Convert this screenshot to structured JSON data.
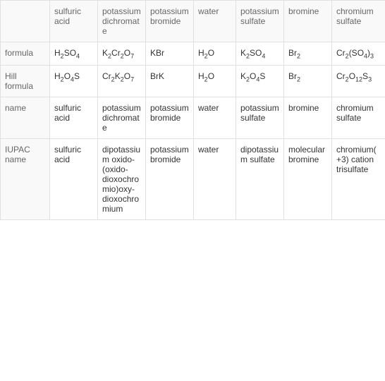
{
  "table": {
    "border_color": "#e0e0e0",
    "header_bg": "#f9f9f9",
    "header_color": "#666666",
    "cell_color": "#333333",
    "font_size": 12,
    "sub_font_size": 9,
    "columns": [
      {
        "key": "rowlabel",
        "header": ""
      },
      {
        "key": "sulfuric_acid",
        "header": "sulfuric acid"
      },
      {
        "key": "potassium_dichromate",
        "header": "potassium dichromate"
      },
      {
        "key": "potassium_bromide",
        "header": "potassium bromide"
      },
      {
        "key": "water",
        "header": "water"
      },
      {
        "key": "potassium_sulfate",
        "header": "potassium sulfate"
      },
      {
        "key": "bromine",
        "header": "bromine"
      },
      {
        "key": "chromium_sulfate",
        "header": "chromium sulfate"
      }
    ],
    "rows": {
      "formula": {
        "label": "formula",
        "sulfuric_acid": [
          {
            "t": "H"
          },
          {
            "s": "2"
          },
          {
            "t": "SO"
          },
          {
            "s": "4"
          }
        ],
        "potassium_dichromate": [
          {
            "t": "K"
          },
          {
            "s": "2"
          },
          {
            "t": "Cr"
          },
          {
            "s": "2"
          },
          {
            "t": "O"
          },
          {
            "s": "7"
          }
        ],
        "potassium_bromide": [
          {
            "t": "KBr"
          }
        ],
        "water": [
          {
            "t": "H"
          },
          {
            "s": "2"
          },
          {
            "t": "O"
          }
        ],
        "potassium_sulfate": [
          {
            "t": "K"
          },
          {
            "s": "2"
          },
          {
            "t": "SO"
          },
          {
            "s": "4"
          }
        ],
        "bromine": [
          {
            "t": "Br"
          },
          {
            "s": "2"
          }
        ],
        "chromium_sulfate": [
          {
            "t": "Cr"
          },
          {
            "s": "2"
          },
          {
            "t": "(SO"
          },
          {
            "s": "4"
          },
          {
            "t": ")"
          },
          {
            "s": "3"
          }
        ]
      },
      "hill": {
        "label": "Hill formula",
        "sulfuric_acid": [
          {
            "t": "H"
          },
          {
            "s": "2"
          },
          {
            "t": "O"
          },
          {
            "s": "4"
          },
          {
            "t": "S"
          }
        ],
        "potassium_dichromate": [
          {
            "t": "Cr"
          },
          {
            "s": "2"
          },
          {
            "t": "K"
          },
          {
            "s": "2"
          },
          {
            "t": "O"
          },
          {
            "s": "7"
          }
        ],
        "potassium_bromide": [
          {
            "t": "BrK"
          }
        ],
        "water": [
          {
            "t": "H"
          },
          {
            "s": "2"
          },
          {
            "t": "O"
          }
        ],
        "potassium_sulfate": [
          {
            "t": "K"
          },
          {
            "s": "2"
          },
          {
            "t": "O"
          },
          {
            "s": "4"
          },
          {
            "t": "S"
          }
        ],
        "bromine": [
          {
            "t": "Br"
          },
          {
            "s": "2"
          }
        ],
        "chromium_sulfate": [
          {
            "t": "Cr"
          },
          {
            "s": "2"
          },
          {
            "t": "O"
          },
          {
            "s": "12"
          },
          {
            "t": "S"
          },
          {
            "s": "3"
          }
        ]
      },
      "name": {
        "label": "name",
        "sulfuric_acid": "sulfuric acid",
        "potassium_dichromate": "potassium dichromate",
        "potassium_bromide": "potassium bromide",
        "water": "water",
        "potassium_sulfate": "potassium sulfate",
        "bromine": "bromine",
        "chromium_sulfate": "chromium sulfate"
      },
      "iupac": {
        "label": "IUPAC name",
        "sulfuric_acid": "sulfuric acid",
        "potassium_dichromate": "dipotassium oxido-(oxido-dioxochromio)oxy-dioxochromium",
        "potassium_bromide": "potassium bromide",
        "water": "water",
        "potassium_sulfate": "dipotassium sulfate",
        "bromine": "molecular bromine",
        "chromium_sulfate": "chromium(+3) cation trisulfate"
      }
    }
  }
}
